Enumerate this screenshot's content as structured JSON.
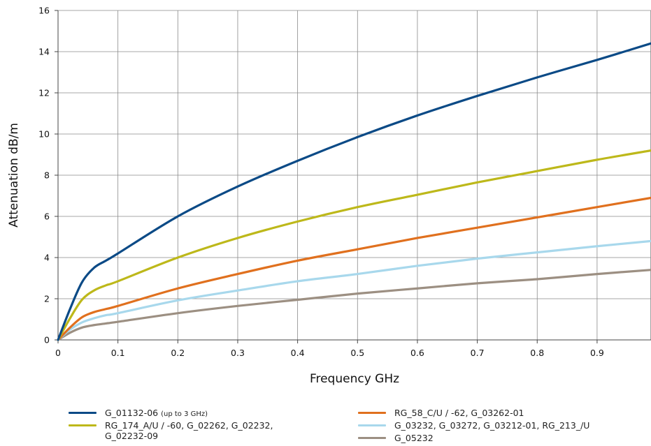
{
  "chart_data": {
    "type": "line",
    "title": "",
    "xlabel": "Frequency GHz",
    "ylabel": "Attenuation dB/m",
    "xlim": [
      0,
      0.99
    ],
    "ylim": [
      0,
      16
    ],
    "xticks": [
      0,
      0.1,
      0.2,
      0.3,
      0.4,
      0.5,
      0.6,
      0.7,
      0.8,
      0.9
    ],
    "xtick_labels": [
      "0",
      "0.1",
      "0.2",
      "0.3",
      "0.4",
      "0.5",
      "0.6",
      "0.7",
      "0.8",
      "0.9"
    ],
    "yticks": [
      0,
      2,
      4,
      6,
      8,
      10,
      12,
      14,
      16
    ],
    "ytick_labels": [
      "0",
      "2",
      "4",
      "6",
      "8",
      "10",
      "12",
      "14",
      "16"
    ],
    "grid": true,
    "legend_position": "bottom",
    "series": [
      {
        "name": "G_01132-06 (up to 3 GHz)",
        "color": "#0b4a86",
        "x": [
          0,
          0.02,
          0.04,
          0.06,
          0.08,
          0.1,
          0.2,
          0.3,
          0.4,
          0.5,
          0.6,
          0.7,
          0.8,
          0.9,
          0.99
        ],
        "y": [
          0,
          1.5,
          2.8,
          3.5,
          3.85,
          4.2,
          6.0,
          7.45,
          8.7,
          9.85,
          10.9,
          11.85,
          12.75,
          13.6,
          14.4
        ]
      },
      {
        "name": "RG_174_A/U / -60, G_02262, G_02232, G_02232-09",
        "color": "#bdb81a",
        "x": [
          0,
          0.02,
          0.04,
          0.06,
          0.08,
          0.1,
          0.2,
          0.3,
          0.4,
          0.5,
          0.6,
          0.7,
          0.8,
          0.9,
          0.99
        ],
        "y": [
          0,
          1.05,
          1.95,
          2.4,
          2.65,
          2.85,
          4.0,
          4.95,
          5.75,
          6.45,
          7.05,
          7.65,
          8.2,
          8.75,
          9.2
        ]
      },
      {
        "name": "RG_58_C/U / -62, G_03262-01",
        "color": "#e0701e",
        "x": [
          0,
          0.02,
          0.04,
          0.06,
          0.08,
          0.1,
          0.2,
          0.3,
          0.4,
          0.5,
          0.6,
          0.7,
          0.8,
          0.9,
          0.99
        ],
        "y": [
          0,
          0.6,
          1.1,
          1.35,
          1.5,
          1.65,
          2.5,
          3.2,
          3.85,
          4.4,
          4.95,
          5.45,
          5.95,
          6.45,
          6.9
        ]
      },
      {
        "name": "G_03232, G_03272, G_03212-01, RG_213_/U",
        "color": "#a8d8ec",
        "x": [
          0,
          0.02,
          0.04,
          0.06,
          0.08,
          0.1,
          0.2,
          0.3,
          0.4,
          0.5,
          0.6,
          0.7,
          0.8,
          0.9,
          0.99
        ],
        "y": [
          0,
          0.5,
          0.85,
          1.05,
          1.2,
          1.3,
          1.92,
          2.4,
          2.85,
          3.2,
          3.6,
          3.95,
          4.25,
          4.55,
          4.8
        ]
      },
      {
        "name": "G_05232",
        "color": "#9c8f82",
        "x": [
          0,
          0.02,
          0.04,
          0.06,
          0.08,
          0.1,
          0.2,
          0.3,
          0.4,
          0.5,
          0.6,
          0.7,
          0.8,
          0.9,
          0.99
        ],
        "y": [
          0,
          0.35,
          0.6,
          0.72,
          0.8,
          0.88,
          1.3,
          1.65,
          1.95,
          2.25,
          2.5,
          2.75,
          2.95,
          3.2,
          3.4
        ]
      }
    ]
  }
}
